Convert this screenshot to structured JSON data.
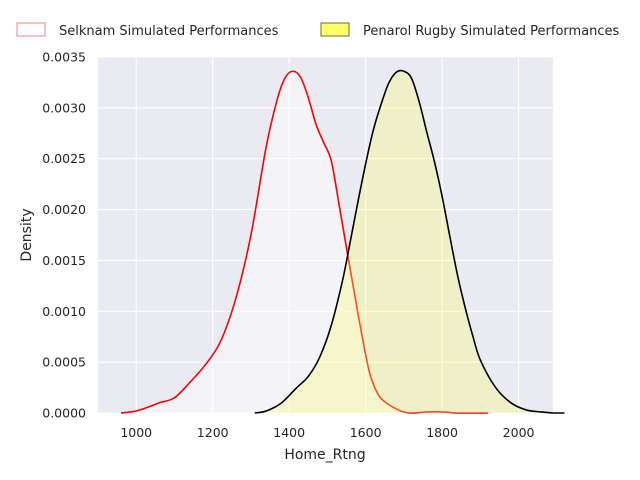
{
  "chart_data": {
    "type": "area",
    "title": "",
    "xlabel": "Home_Rtng",
    "ylabel": "Density",
    "xlim": [
      900,
      2090
    ],
    "ylim": [
      0,
      0.0035
    ],
    "x_ticks": [
      1000,
      1200,
      1400,
      1600,
      1800,
      2000
    ],
    "y_ticks": [
      0.0,
      0.0005,
      0.001,
      0.0015,
      0.002,
      0.0025,
      0.003,
      0.0035
    ],
    "x_tick_labels": [
      "1000",
      "1200",
      "1400",
      "1600",
      "1800",
      "2000"
    ],
    "y_tick_labels": [
      "0.0000",
      "0.0005",
      "0.0010",
      "0.0015",
      "0.0020",
      "0.0025",
      "0.0030",
      "0.0035"
    ],
    "grid": true,
    "legend_position": "top",
    "background_color": "#eaeaf2",
    "series": [
      {
        "name": "Selknam Simulated Performances",
        "line_color": "#ff0000",
        "fill_color": "#ffffff",
        "fill_opacity": 0.45,
        "x": [
          960,
          1000,
          1040,
          1060,
          1100,
          1140,
          1180,
          1220,
          1260,
          1300,
          1340,
          1370,
          1390,
          1410,
          1430,
          1450,
          1470,
          1490,
          1510,
          1530,
          1550,
          1570,
          1590,
          1610,
          1630,
          1650,
          1680,
          1700,
          1720,
          1760,
          1800,
          1840,
          1880,
          1920
        ],
        "y": [
          0.0,
          2e-05,
          7e-05,
          0.0001,
          0.00015,
          0.0003,
          0.00047,
          0.0007,
          0.00112,
          0.00175,
          0.00262,
          0.0031,
          0.0033,
          0.00336,
          0.0033,
          0.0031,
          0.00284,
          0.00266,
          0.00248,
          0.00206,
          0.00162,
          0.00119,
          0.00077,
          0.0004,
          0.0002,
          0.00011,
          4e-05,
          1e-05,
          0.0,
          1e-05,
          1e-05,
          0.0,
          0.0,
          0.0
        ]
      },
      {
        "name": "Penarol Rugby Simulated Performances",
        "line_color": "#000000",
        "fill_color": "#ffff66",
        "fill_opacity": 0.3,
        "x": [
          1310,
          1340,
          1380,
          1420,
          1450,
          1480,
          1510,
          1540,
          1560,
          1580,
          1600,
          1620,
          1640,
          1660,
          1680,
          1700,
          1720,
          1740,
          1760,
          1780,
          1800,
          1820,
          1840,
          1860,
          1880,
          1900,
          1940,
          1980,
          2020,
          2060,
          2090,
          2120
        ],
        "y": [
          0.0,
          2e-05,
          0.0001,
          0.00025,
          0.00036,
          0.00055,
          0.00086,
          0.00131,
          0.00169,
          0.00208,
          0.00245,
          0.00278,
          0.00303,
          0.00324,
          0.00335,
          0.00336,
          0.00329,
          0.00306,
          0.00276,
          0.00247,
          0.00213,
          0.00174,
          0.00136,
          0.00104,
          0.00076,
          0.00052,
          0.00025,
          0.0001,
          3e-05,
          1e-05,
          0.0,
          0.0
        ]
      }
    ]
  }
}
